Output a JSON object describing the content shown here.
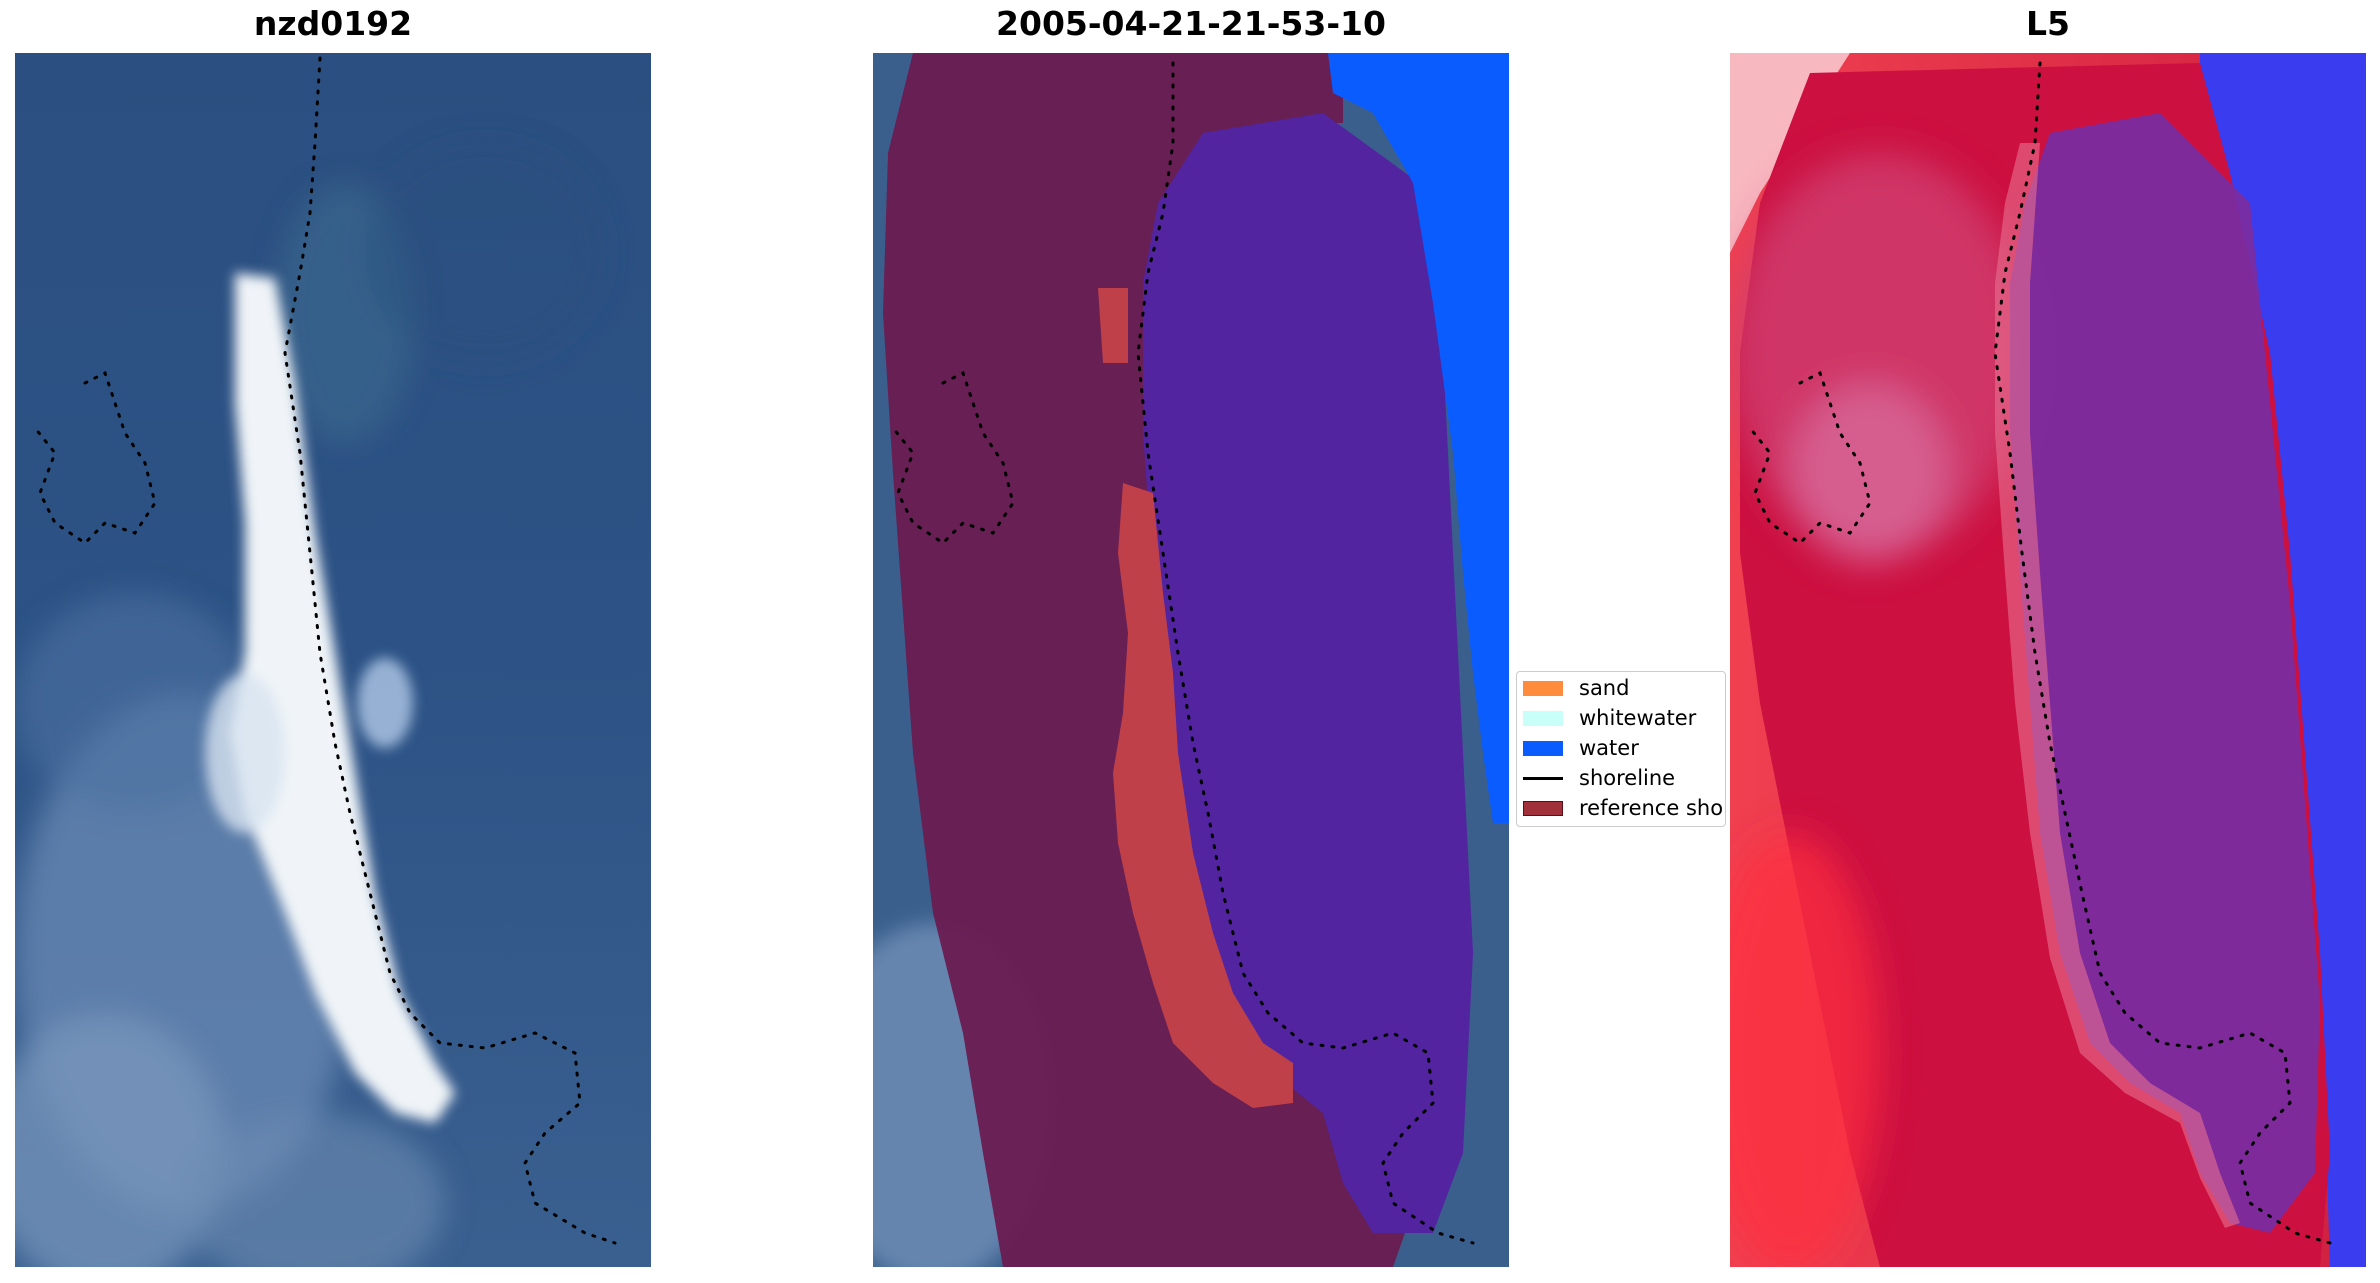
{
  "panels": {
    "rgb": {
      "title": "nzd0192"
    },
    "classified": {
      "title": "2005-04-21-21-53-10"
    },
    "index": {
      "title": "L5"
    }
  },
  "legend": {
    "items": [
      {
        "label": "sand",
        "color": "#ff8c3c",
        "kind": "patch"
      },
      {
        "label": "whitewater",
        "color": "#c8fff8",
        "kind": "patch"
      },
      {
        "label": "water",
        "color": "#0a5cff",
        "kind": "patch"
      },
      {
        "label": "shoreline",
        "color": "#000000",
        "kind": "line"
      },
      {
        "label": "reference sho",
        "color": "#a0303a",
        "kind": "patch"
      }
    ]
  },
  "colors": {
    "rgb_background": "#2a4d7e",
    "sand_bright": "#f4f8fb",
    "class_land": "#6a1a50",
    "class_water_inner": "#5224a0",
    "class_water_outer": "#0a5cff",
    "class_sand": "#c0404a",
    "index_red": "#cc1040",
    "index_pink": "#e87090",
    "index_purple": "#7a2ca0",
    "index_blue": "#3a3cf0",
    "shoreline_dots": "#000000"
  }
}
